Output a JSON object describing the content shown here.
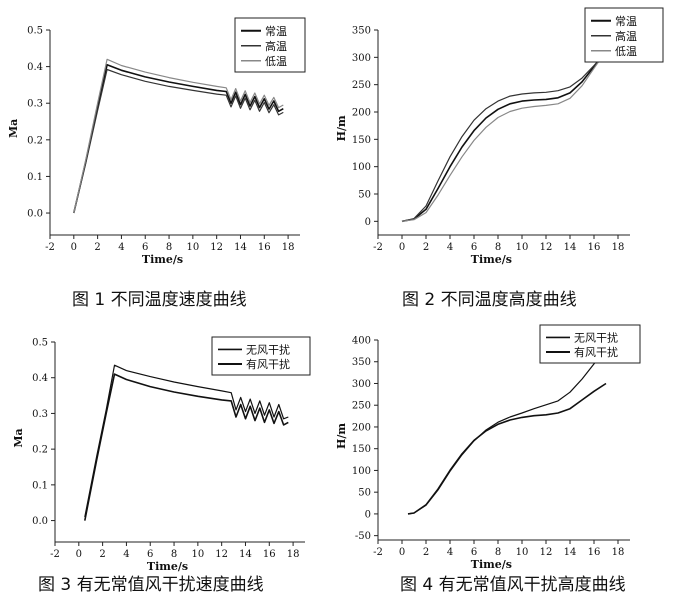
{
  "figures": [
    {
      "caption": "图 1  不同温度速度曲线"
    },
    {
      "caption": "图 2  不同温度高度曲线"
    },
    {
      "caption": "图 3  有无常值风干扰速度曲线"
    },
    {
      "caption": "图 4  有无常值风干扰高度曲线"
    }
  ],
  "chart_data": [
    {
      "type": "line",
      "xlabel": "Time/s",
      "ylabel": "Ma",
      "xlim": [
        -2,
        19
      ],
      "ylim": [
        -0.06,
        0.5
      ],
      "xticks": [
        -2,
        0,
        2,
        4,
        6,
        8,
        10,
        12,
        14,
        16,
        18
      ],
      "yticks": [
        0.0,
        0.1,
        0.2,
        0.3,
        0.4,
        0.5
      ],
      "ytick_labels": [
        "0.0",
        "0.1",
        "0.2",
        "0.3",
        "0.4",
        "0.5"
      ],
      "legend_position": "top-right",
      "series": [
        {
          "name": "常温",
          "color": "#111111",
          "width": 1.6,
          "x": [
            0,
            1,
            2,
            2.8,
            4,
            6,
            8,
            10,
            12,
            12.8,
            13.2,
            13.6,
            14,
            14.4,
            14.8,
            15.2,
            15.6,
            16,
            16.4,
            16.8,
            17.2,
            17.6
          ],
          "y": [
            0,
            0.14,
            0.29,
            0.405,
            0.39,
            0.372,
            0.358,
            0.346,
            0.335,
            0.332,
            0.3,
            0.33,
            0.296,
            0.324,
            0.292,
            0.318,
            0.288,
            0.312,
            0.284,
            0.306,
            0.278,
            0.285
          ]
        },
        {
          "name": "高温",
          "color": "#333333",
          "width": 1.2,
          "x": [
            0,
            1,
            2,
            2.8,
            4,
            6,
            8,
            10,
            12,
            12.8,
            13.2,
            13.6,
            14,
            14.4,
            14.8,
            15.2,
            15.6,
            16,
            16.4,
            16.8,
            17.2,
            17.6
          ],
          "y": [
            0,
            0.135,
            0.28,
            0.392,
            0.378,
            0.36,
            0.346,
            0.335,
            0.325,
            0.322,
            0.29,
            0.32,
            0.286,
            0.314,
            0.282,
            0.308,
            0.278,
            0.302,
            0.274,
            0.296,
            0.268,
            0.275
          ]
        },
        {
          "name": "低温",
          "color": "#888888",
          "width": 1.2,
          "x": [
            0,
            1,
            2,
            2.8,
            4,
            6,
            8,
            10,
            12,
            12.8,
            13.2,
            13.6,
            14,
            14.4,
            14.8,
            15.2,
            15.6,
            16,
            16.4,
            16.8,
            17.2,
            17.6
          ],
          "y": [
            0,
            0.145,
            0.3,
            0.42,
            0.403,
            0.385,
            0.37,
            0.357,
            0.346,
            0.342,
            0.31,
            0.34,
            0.306,
            0.334,
            0.302,
            0.328,
            0.298,
            0.322,
            0.294,
            0.316,
            0.288,
            0.295
          ]
        }
      ]
    },
    {
      "type": "line",
      "xlabel": "Time/s",
      "ylabel": "H/m",
      "xlim": [
        -2,
        19
      ],
      "ylim": [
        -25,
        350
      ],
      "xticks": [
        -2,
        0,
        2,
        4,
        6,
        8,
        10,
        12,
        14,
        16,
        18
      ],
      "yticks": [
        0,
        50,
        100,
        150,
        200,
        250,
        300,
        350
      ],
      "legend_position": "top-right",
      "series": [
        {
          "name": "常温",
          "color": "#111111",
          "width": 1.6,
          "x": [
            0,
            1,
            2,
            3,
            4,
            5,
            6,
            7,
            8,
            9,
            10,
            11,
            12,
            13,
            14,
            15,
            16,
            16.8
          ],
          "y": [
            0,
            4,
            22,
            60,
            100,
            136,
            166,
            189,
            205,
            215,
            220,
            222,
            223,
            226,
            235,
            255,
            283,
            305
          ]
        },
        {
          "name": "高温",
          "color": "#333333",
          "width": 1.2,
          "x": [
            0,
            1,
            2,
            3,
            4,
            5,
            6,
            7,
            8,
            9,
            10,
            11,
            12,
            13,
            14,
            15,
            16,
            16.8
          ],
          "y": [
            0,
            5,
            28,
            74,
            118,
            155,
            185,
            206,
            220,
            229,
            233,
            235,
            236,
            239,
            246,
            262,
            285,
            305
          ]
        },
        {
          "name": "低温",
          "color": "#888888",
          "width": 1.2,
          "x": [
            0,
            1,
            2,
            3,
            4,
            5,
            6,
            7,
            8,
            9,
            10,
            11,
            12,
            13,
            14,
            15,
            16,
            16.8
          ],
          "y": [
            0,
            3,
            16,
            48,
            84,
            118,
            148,
            172,
            190,
            201,
            207,
            210,
            212,
            215,
            225,
            248,
            280,
            305
          ]
        }
      ]
    },
    {
      "type": "line",
      "xlabel": "Time/s",
      "ylabel": "Ma",
      "xlim": [
        -2,
        19
      ],
      "ylim": [
        -0.06,
        0.5
      ],
      "xticks": [
        -2,
        0,
        2,
        4,
        6,
        8,
        10,
        12,
        14,
        16,
        18
      ],
      "yticks": [
        0.0,
        0.1,
        0.2,
        0.3,
        0.4,
        0.5
      ],
      "ytick_labels": [
        "0.0",
        "0.1",
        "0.2",
        "0.3",
        "0.4",
        "0.5"
      ],
      "legend_position": "top-right",
      "series": [
        {
          "name": "无风干扰",
          "color": "#111111",
          "width": 1.2,
          "x": [
            0.5,
            1.5,
            2.3,
            3,
            4,
            6,
            8,
            10,
            12,
            12.8,
            13.2,
            13.6,
            14,
            14.4,
            14.8,
            15.2,
            15.6,
            16,
            16.4,
            16.8,
            17.2,
            17.6
          ],
          "y": [
            0.01,
            0.18,
            0.31,
            0.435,
            0.42,
            0.403,
            0.388,
            0.375,
            0.363,
            0.358,
            0.31,
            0.345,
            0.305,
            0.34,
            0.3,
            0.335,
            0.295,
            0.33,
            0.29,
            0.325,
            0.285,
            0.29
          ]
        },
        {
          "name": "有风干扰",
          "color": "#111111",
          "width": 1.6,
          "x": [
            0.5,
            1.5,
            2.3,
            3,
            4,
            6,
            8,
            10,
            12,
            12.8,
            13.2,
            13.6,
            14,
            14.4,
            14.8,
            15.2,
            15.6,
            16,
            16.4,
            16.8,
            17.2,
            17.6
          ],
          "y": [
            0,
            0.17,
            0.3,
            0.41,
            0.395,
            0.375,
            0.36,
            0.348,
            0.338,
            0.335,
            0.29,
            0.325,
            0.285,
            0.32,
            0.28,
            0.315,
            0.275,
            0.31,
            0.272,
            0.305,
            0.268,
            0.275
          ]
        }
      ]
    },
    {
      "type": "line",
      "xlabel": "Time/s",
      "ylabel": "H/m",
      "xlim": [
        -2,
        19
      ],
      "ylim": [
        -60,
        400
      ],
      "xticks": [
        -2,
        0,
        2,
        4,
        6,
        8,
        10,
        12,
        14,
        16,
        18
      ],
      "yticks": [
        -50,
        0,
        50,
        100,
        150,
        200,
        250,
        300,
        350,
        400
      ],
      "legend_position": "top-right",
      "series": [
        {
          "name": "无风干扰",
          "color": "#111111",
          "width": 1.2,
          "x": [
            0.5,
            1,
            2,
            3,
            4,
            5,
            6,
            7,
            8,
            9,
            10,
            11,
            12,
            13,
            14,
            15,
            16,
            17
          ],
          "y": [
            0,
            2,
            20,
            55,
            98,
            136,
            168,
            193,
            211,
            223,
            232,
            242,
            251,
            260,
            280,
            310,
            345,
            375
          ]
        },
        {
          "name": "有风干扰",
          "color": "#111111",
          "width": 1.6,
          "x": [
            0.5,
            1,
            2,
            3,
            4,
            5,
            6,
            7,
            8,
            9,
            10,
            11,
            12,
            13,
            14,
            15,
            16,
            17
          ],
          "y": [
            0,
            2,
            21,
            57,
            100,
            138,
            169,
            191,
            206,
            216,
            222,
            226,
            228,
            232,
            242,
            262,
            282,
            300
          ]
        }
      ]
    }
  ]
}
